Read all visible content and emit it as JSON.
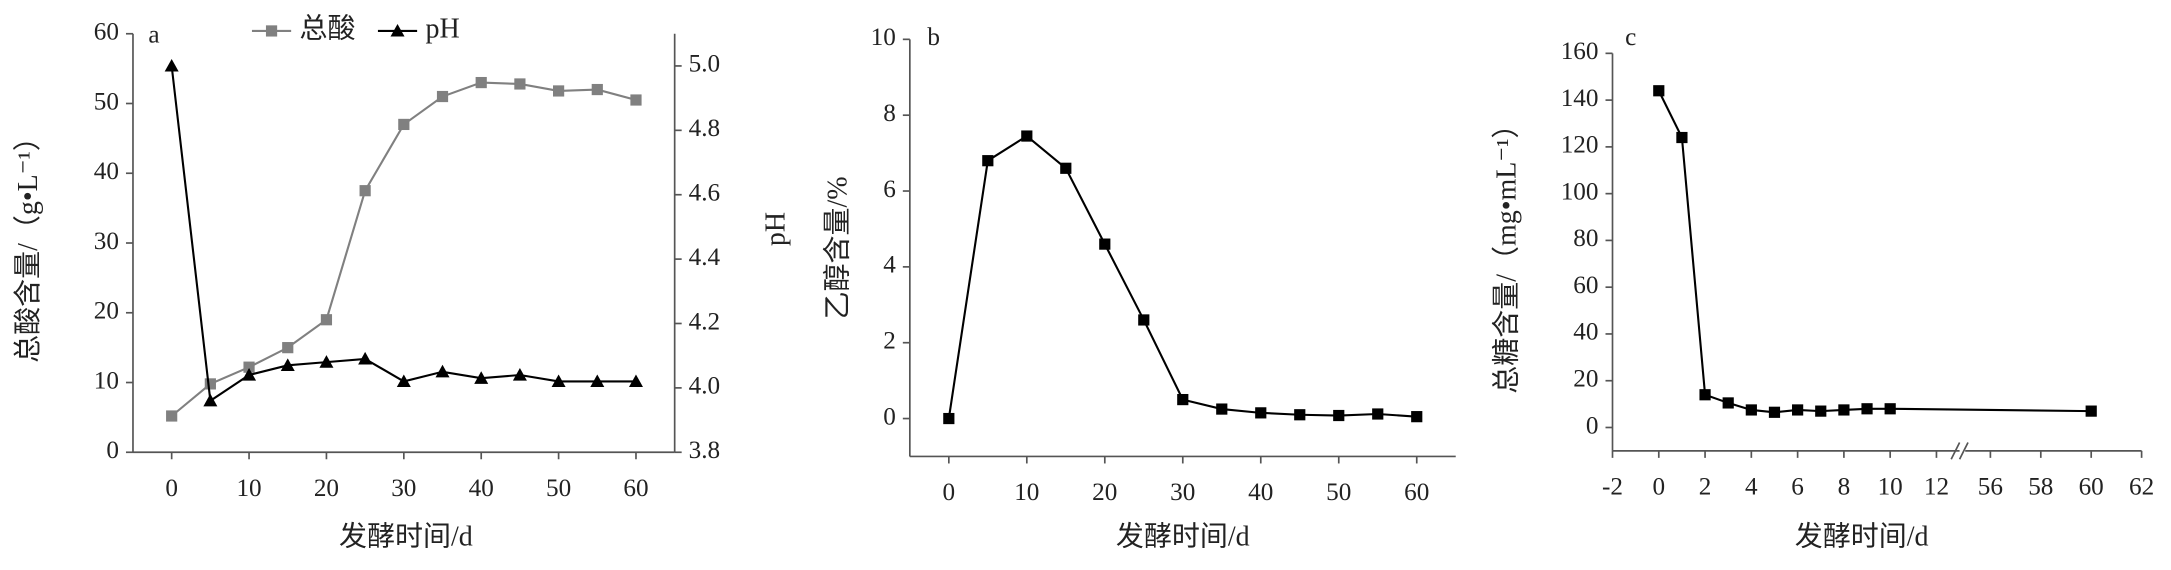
{
  "chart_data": [
    {
      "type": "line",
      "label": "a",
      "x": [
        0,
        5,
        10,
        15,
        20,
        25,
        30,
        35,
        40,
        45,
        50,
        55,
        60
      ],
      "xlim": [
        -5,
        65
      ],
      "xticks": [
        0,
        10,
        20,
        30,
        40,
        50,
        60
      ],
      "ylim": [
        0,
        60
      ],
      "yticks": [
        0,
        10,
        20,
        30,
        40,
        50,
        60
      ],
      "y2lim": [
        3.8,
        5.1
      ],
      "y2ticks": [
        3.8,
        {
          "value": 4,
          "label": "4.0"
        },
        4.2,
        4.4,
        4.6,
        4.8,
        {
          "value": 5,
          "label": "5.0"
        }
      ],
      "xlabel": "发酵时间/d",
      "ylabel": "总酸含量/（g•L⁻¹）",
      "y2label": "pH",
      "series": [
        {
          "name": "总酸",
          "color": "#808080",
          "marker": "square",
          "values": [
            5.2,
            9.8,
            12.2,
            15,
            19,
            37.5,
            47,
            51,
            53,
            52.8,
            51.8,
            52,
            50.5
          ]
        },
        {
          "name": "pH",
          "color": "#000000",
          "marker": "triangle",
          "axis": "y2",
          "values": [
            5.0,
            3.96,
            4.04,
            4.07,
            4.08,
            4.09,
            4.02,
            4.05,
            4.03,
            4.04,
            4.02,
            4.02,
            4.02
          ]
        }
      ]
    },
    {
      "type": "line",
      "label": "b",
      "x": [
        0,
        5,
        10,
        15,
        20,
        25,
        30,
        35,
        40,
        45,
        50,
        55,
        60
      ],
      "xlim": [
        -5,
        65
      ],
      "xticks": [
        0,
        10,
        20,
        30,
        40,
        50,
        60
      ],
      "ylim": [
        -1,
        10
      ],
      "yticks": [
        0,
        2,
        4,
        6,
        8,
        10
      ],
      "xlabel": "发酵时间/d",
      "ylabel": "乙醇含量/%",
      "series": [
        {
          "color": "#000000",
          "marker": "square",
          "values": [
            0,
            6.8,
            7.45,
            6.6,
            4.6,
            2.6,
            0.5,
            0.25,
            0.15,
            0.1,
            0.08,
            0.12,
            0.05
          ]
        }
      ]
    },
    {
      "type": "line",
      "label": "c",
      "x": [
        0,
        1,
        2,
        3,
        4,
        5,
        6,
        7,
        8,
        9,
        10,
        60
      ],
      "xlim": [
        -2,
        62
      ],
      "xbreak": [
        13,
        55
      ],
      "xticks": [
        -2,
        0,
        2,
        4,
        6,
        8,
        10,
        12,
        56,
        58,
        60,
        62
      ],
      "ylim": [
        -10,
        160
      ],
      "yticks": [
        0,
        20,
        40,
        60,
        80,
        100,
        120,
        140,
        160
      ],
      "xlabel": "发酵时间/d",
      "ylabel": "总糖含量/（mg•mL⁻¹）",
      "series": [
        {
          "color": "#000000",
          "marker": "square",
          "values": [
            144,
            124,
            14,
            10.5,
            7.5,
            6.5,
            7.5,
            7,
            7.5,
            8,
            8,
            7
          ]
        }
      ]
    }
  ]
}
